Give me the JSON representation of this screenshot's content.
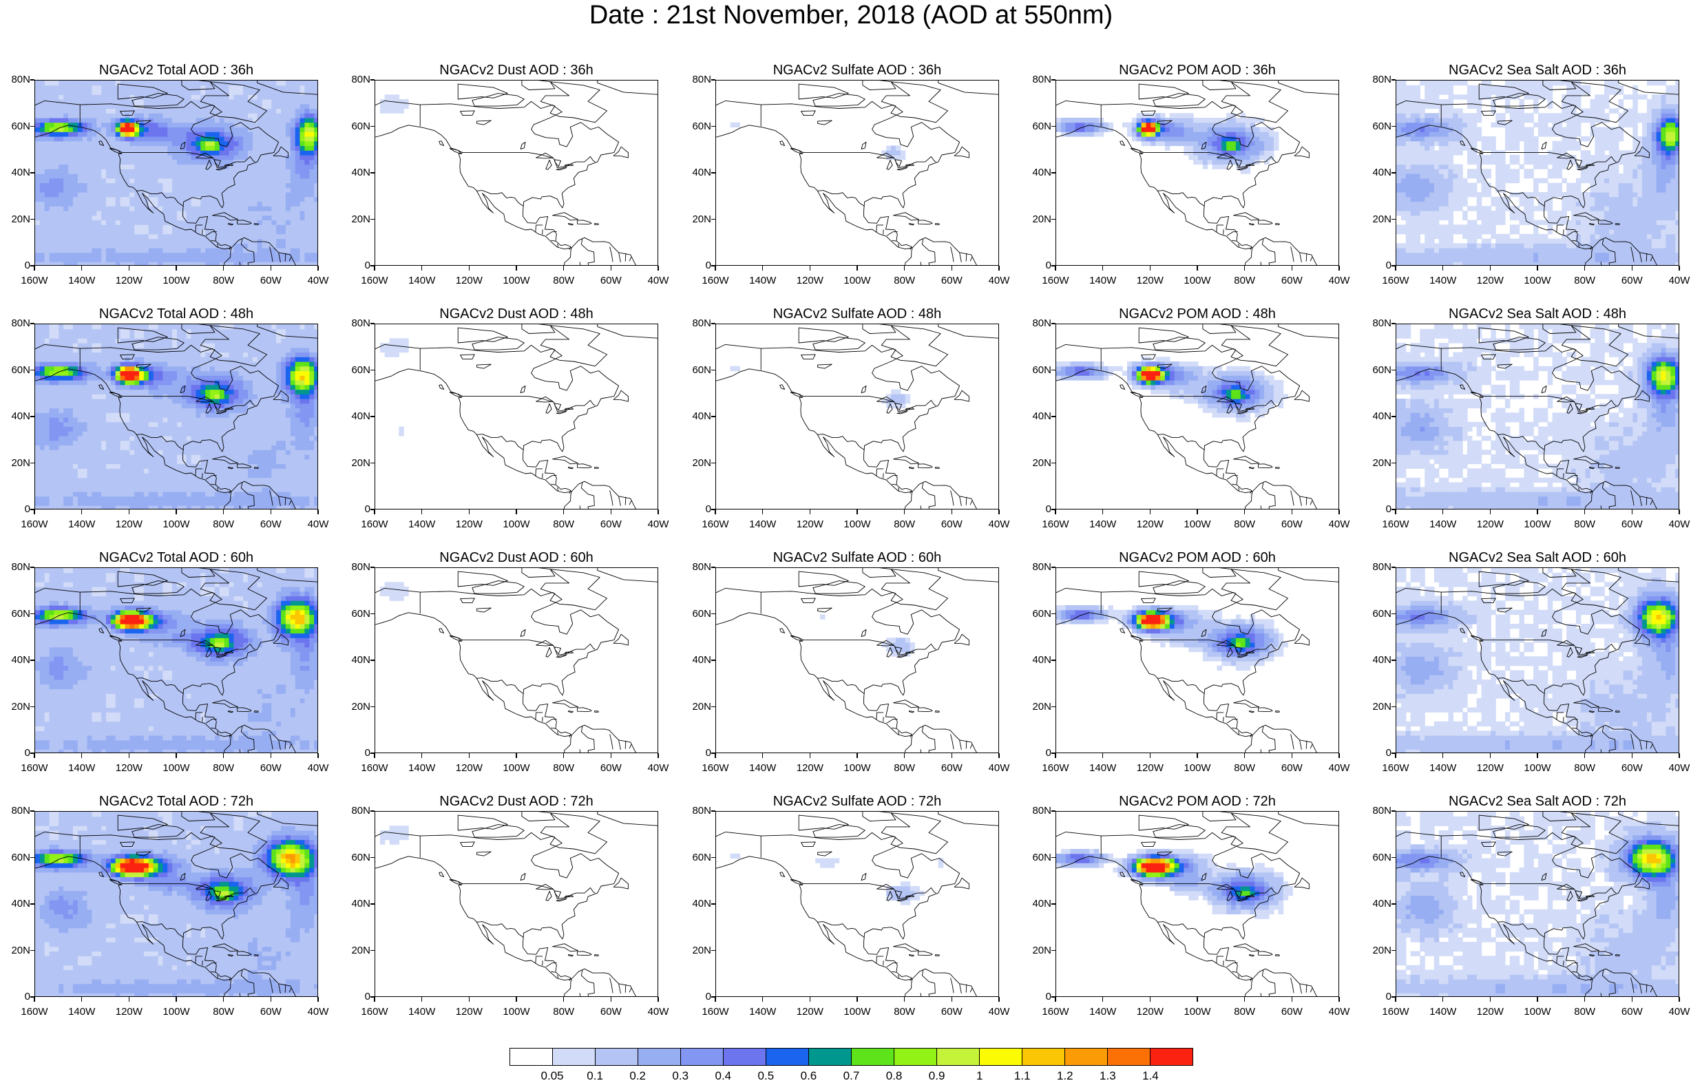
{
  "title": "Date : 21st November, 2018 (AOD at 550nm)",
  "colors": {
    "levels": [
      "#ffffff",
      "#d2dcf8",
      "#b4c4f4",
      "#98aef3",
      "#8296f2",
      "#6c74ee",
      "#1b64ef",
      "#00978e",
      "#5ee31a",
      "#93f215",
      "#c4f33a",
      "#fbfb04",
      "#fbc603",
      "#fb9c06",
      "#fb7106",
      "#fc2212"
    ],
    "coast": "#000000"
  },
  "colorbar": {
    "labels": [
      "0.05",
      "0.1",
      "0.2",
      "0.3",
      "0.4",
      "0.5",
      "0.6",
      "0.7",
      "0.8",
      "0.9",
      "1",
      "1.1",
      "1.2",
      "1.3",
      "1.4"
    ]
  },
  "axes": {
    "y_labels": [
      "80N",
      "60N",
      "40N",
      "20N",
      "0"
    ],
    "x_labels": [
      "160W",
      "140W",
      "120W",
      "100W",
      "80W",
      "60W",
      "40W"
    ],
    "lon_range": [
      -160,
      -40
    ],
    "lat_range": [
      0,
      80
    ]
  },
  "panels": [
    {
      "title": "NGACv2 Total AOD : 36h",
      "species": "total",
      "hour": 36
    },
    {
      "title": "NGACv2 Dust AOD : 36h",
      "species": "dust",
      "hour": 36
    },
    {
      "title": "NGACv2 Sulfate AOD : 36h",
      "species": "sulfate",
      "hour": 36
    },
    {
      "title": "NGACv2 POM AOD : 36h",
      "species": "pom",
      "hour": 36
    },
    {
      "title": "NGACv2 Sea Salt AOD : 36h",
      "species": "seasalt",
      "hour": 36
    },
    {
      "title": "NGACv2 Total AOD : 48h",
      "species": "total",
      "hour": 48
    },
    {
      "title": "NGACv2 Dust AOD : 48h",
      "species": "dust",
      "hour": 48
    },
    {
      "title": "NGACv2 Sulfate AOD : 48h",
      "species": "sulfate",
      "hour": 48
    },
    {
      "title": "NGACv2 POM AOD : 48h",
      "species": "pom",
      "hour": 48
    },
    {
      "title": "NGACv2 Sea Salt AOD : 48h",
      "species": "seasalt",
      "hour": 48
    },
    {
      "title": "NGACv2 Total AOD : 60h",
      "species": "total",
      "hour": 60
    },
    {
      "title": "NGACv2 Dust AOD : 60h",
      "species": "dust",
      "hour": 60
    },
    {
      "title": "NGACv2 Sulfate AOD : 60h",
      "species": "sulfate",
      "hour": 60
    },
    {
      "title": "NGACv2 POM AOD : 60h",
      "species": "pom",
      "hour": 60
    },
    {
      "title": "NGACv2 Sea Salt AOD : 60h",
      "species": "seasalt",
      "hour": 60
    },
    {
      "title": "NGACv2 Total AOD : 72h",
      "species": "total",
      "hour": 72
    },
    {
      "title": "NGACv2 Dust AOD : 72h",
      "species": "dust",
      "hour": 72
    },
    {
      "title": "NGACv2 Sulfate AOD : 72h",
      "species": "sulfate",
      "hour": 72
    },
    {
      "title": "NGACv2 POM AOD : 72h",
      "species": "pom",
      "hour": 72
    },
    {
      "title": "NGACv2 Sea Salt  AOD : 72h",
      "species": "seasalt",
      "hour": 72
    }
  ]
}
